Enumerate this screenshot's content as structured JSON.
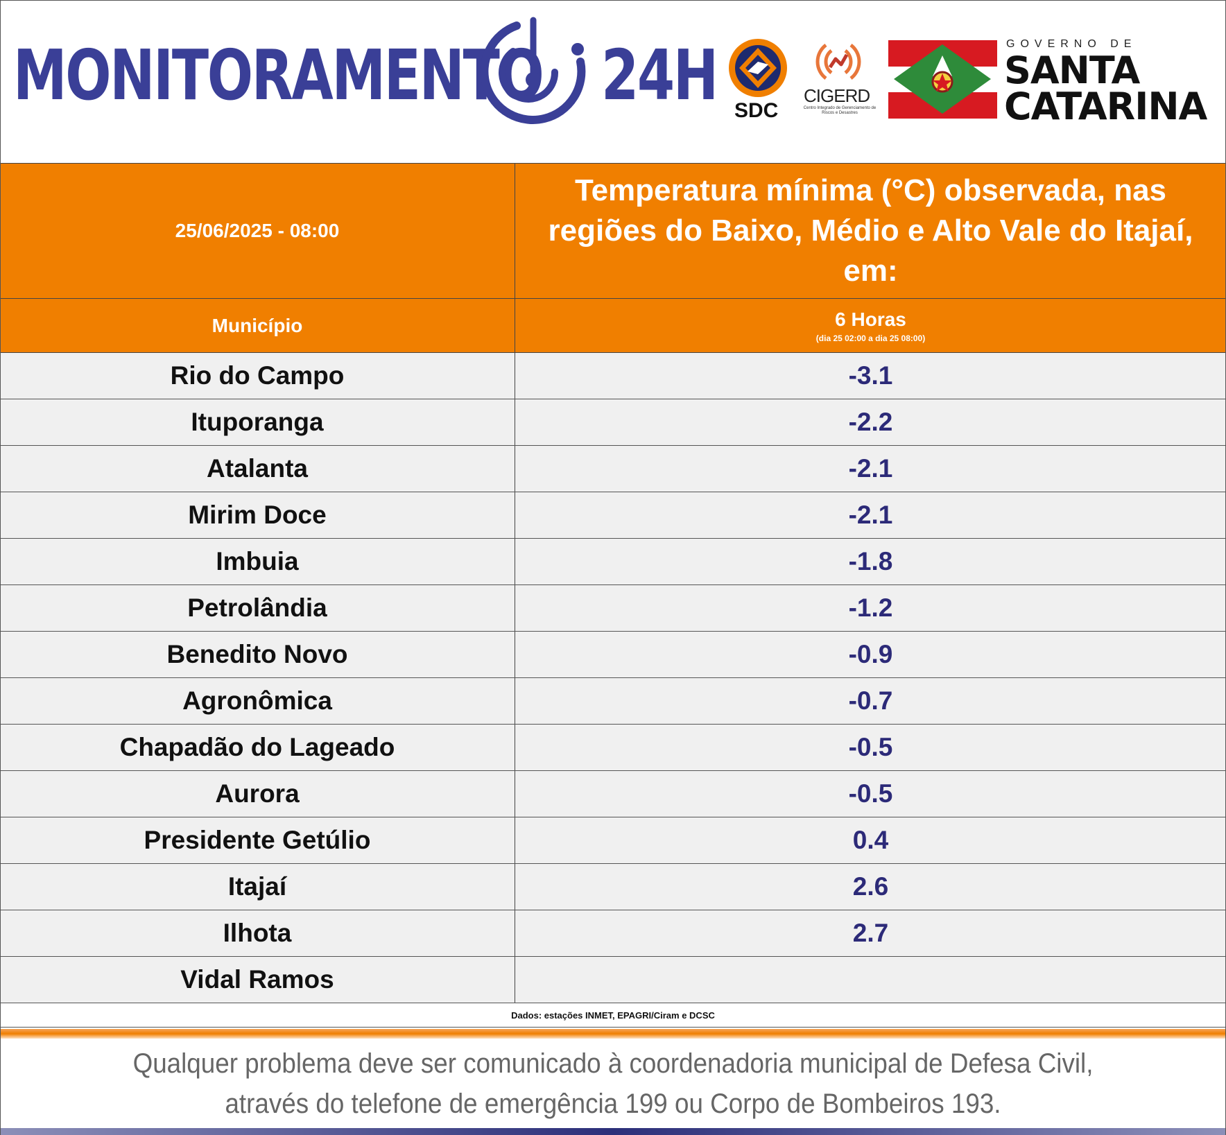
{
  "header": {
    "monitor_word": "MONITORAMENTO",
    "monitor_suffix": "24H",
    "sdc_label": "SDC",
    "cigerd_label": "CIGERD",
    "cigerd_sub": "Centro Integrado de Gerenciamento de Riscos e Desastres",
    "gov_top": "GOVERNO DE",
    "gov_line1": "SANTA",
    "gov_line2": "CATARINA",
    "brand_color": "#3a3f97"
  },
  "table": {
    "datetime": "25/06/2025 - 08:00",
    "title": "Temperatura mínima (°C) observada, nas regiões do Baixo, Médio e Alto Vale do Itajaí, em:",
    "col_municipio": "Município",
    "col_horas": "6 Horas",
    "col_horas_range": "(dia 25 02:00 a dia 25 08:00)",
    "header_color": "#f07f00",
    "rows": [
      {
        "municipio": "Rio do Campo",
        "valor": "-3.1"
      },
      {
        "municipio": "Ituporanga",
        "valor": "-2.2"
      },
      {
        "municipio": "Atalanta",
        "valor": "-2.1"
      },
      {
        "municipio": "Mirim Doce",
        "valor": "-2.1"
      },
      {
        "municipio": "Imbuia",
        "valor": "-1.8"
      },
      {
        "municipio": "Petrolândia",
        "valor": "-1.2"
      },
      {
        "municipio": "Benedito Novo",
        "valor": "-0.9"
      },
      {
        "municipio": "Agronômica",
        "valor": "-0.7"
      },
      {
        "municipio": "Chapadão do Lageado",
        "valor": "-0.5"
      },
      {
        "municipio": "Aurora",
        "valor": "-0.5"
      },
      {
        "municipio": "Presidente Getúlio",
        "valor": "0.4"
      },
      {
        "municipio": "Itajaí",
        "valor": "2.6"
      },
      {
        "municipio": "Ilhota",
        "valor": "2.7"
      },
      {
        "municipio": "Vidal Ramos",
        "valor": ""
      }
    ],
    "source": "Dados: estações INMET, EPAGRI/Ciram e DCSC"
  },
  "footer": {
    "line1": "Qualquer problema deve ser comunicado à coordenadoria municipal de Defesa Civil,",
    "line2": "através do telefone de emergência 199 ou Corpo de Bombeiros 193."
  }
}
